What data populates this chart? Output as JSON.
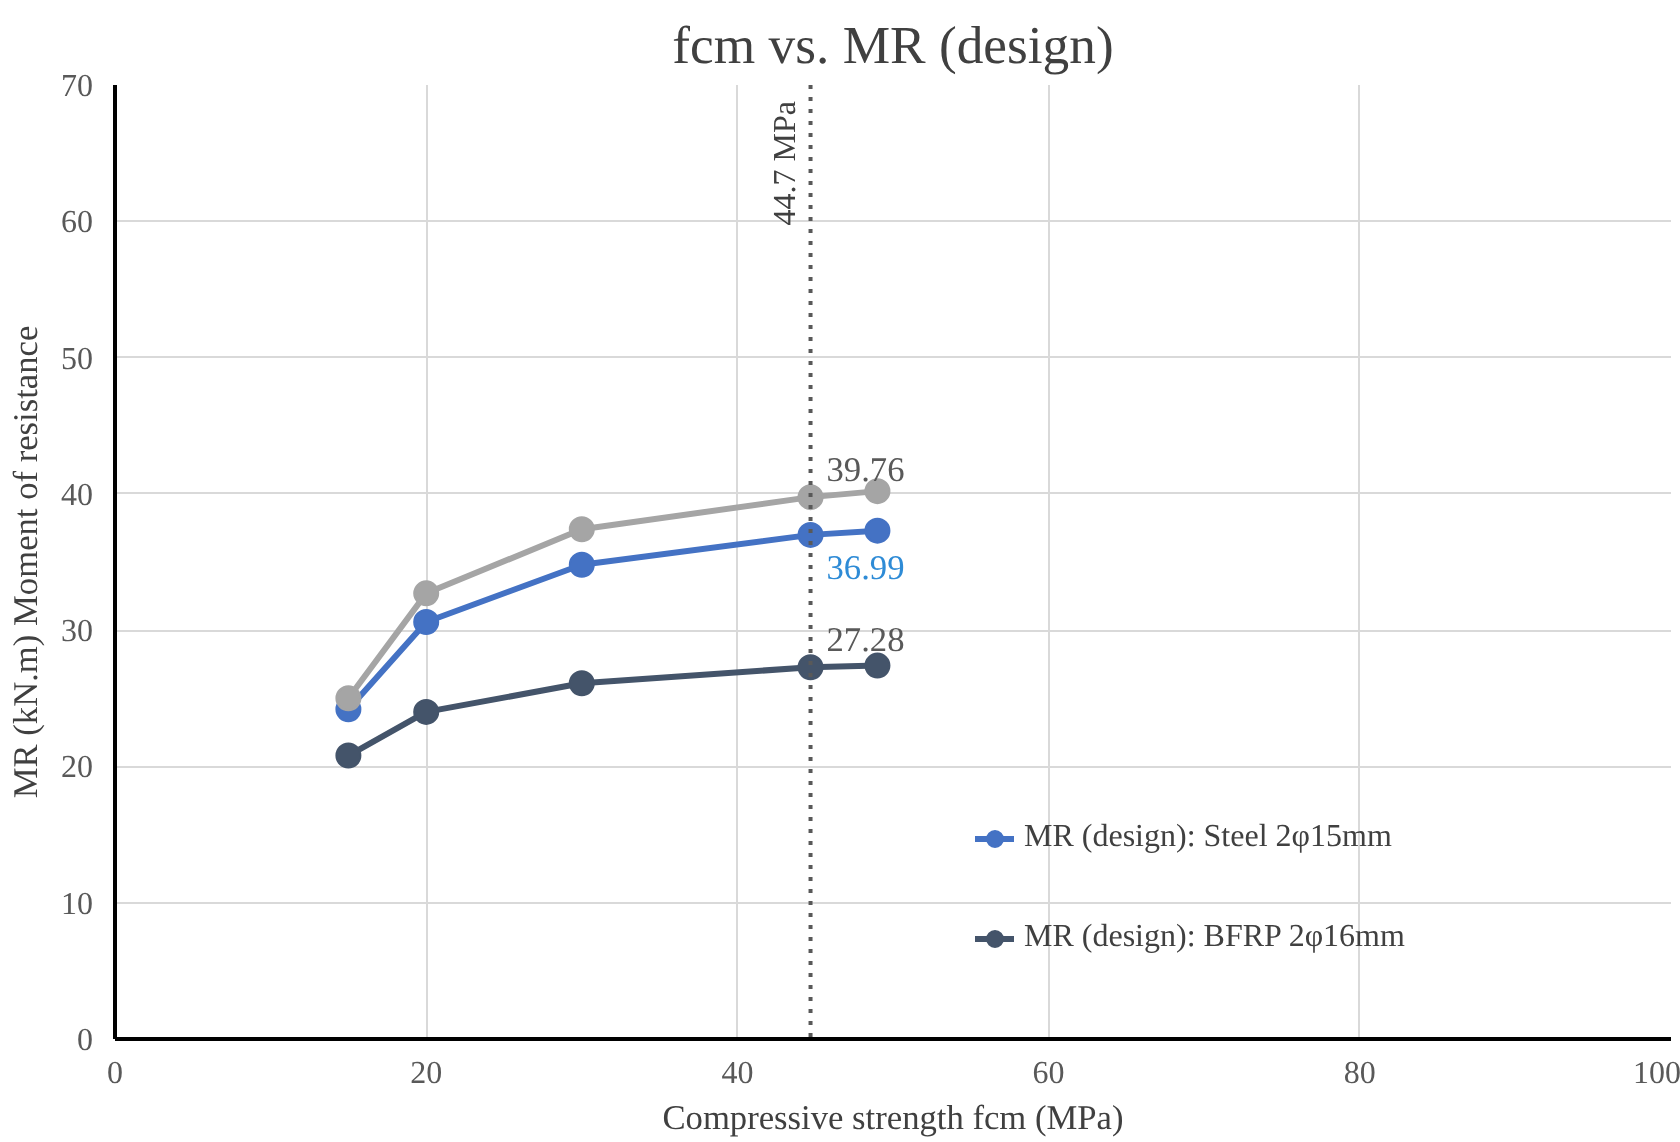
{
  "chart_data": {
    "type": "line",
    "title": "fcm vs. MR (design)",
    "xlabel": "Compressive strength fcm (MPa)",
    "ylabel": "MR (kN.m) Moment of resistance",
    "x": [
      15,
      20,
      30,
      44.7,
      49
    ],
    "series": [
      {
        "name": "MR (design): Steel 2φ15mm",
        "color": "#4472c4",
        "values": [
          24.2,
          30.6,
          34.8,
          36.99,
          37.3
        ],
        "value_labels": [
          null,
          null,
          null,
          "36.99",
          null
        ]
      },
      {
        "name": "MR (design): BFRP 2φ16mm",
        "color": "#44546a",
        "values": [
          20.8,
          24.0,
          26.1,
          27.28,
          27.4
        ],
        "value_labels": [
          null,
          null,
          null,
          "27.28",
          null
        ]
      },
      {
        "color": "#a5a5a5",
        "values": [
          25.0,
          32.7,
          37.4,
          39.76,
          40.2
        ],
        "value_labels": [
          null,
          null,
          null,
          "39.76",
          null
        ]
      }
    ],
    "xlim": [
      0,
      100
    ],
    "xticks": [
      0,
      20,
      40,
      60,
      80,
      100
    ],
    "ylim": [
      0,
      70
    ],
    "yticks": [
      0,
      10,
      20,
      30,
      40,
      50,
      60,
      70
    ],
    "ref_lines": [
      {
        "axis": "x",
        "value": 44.7,
        "label": "44.7 MPa",
        "color": "#595959",
        "line_style": "dotted"
      }
    ],
    "grid": true,
    "legend": "right",
    "marker": "circle",
    "line_style": "solid"
  }
}
